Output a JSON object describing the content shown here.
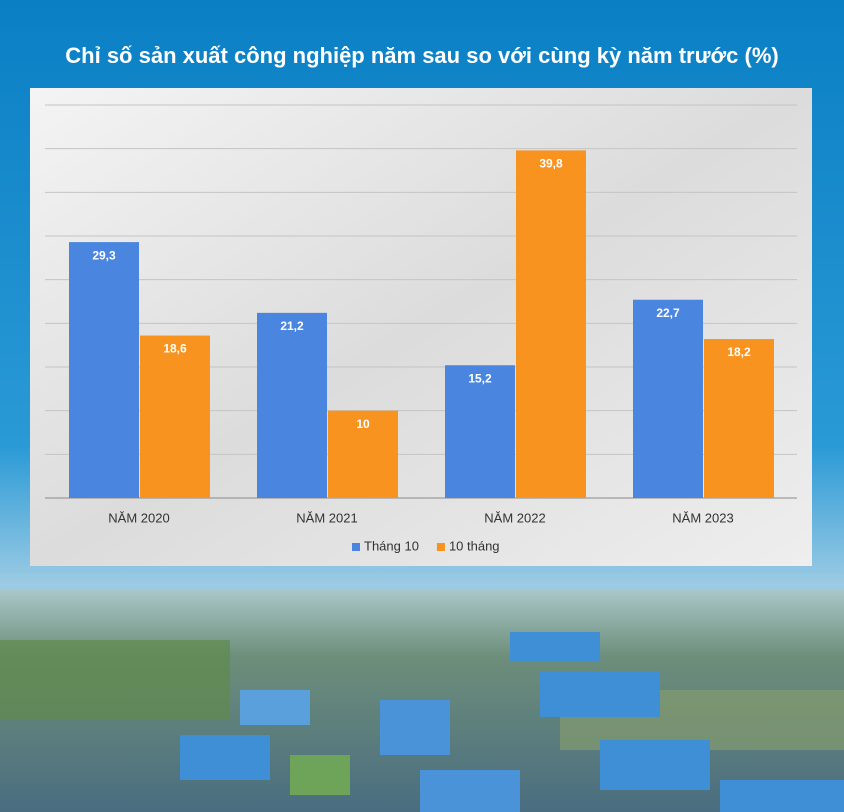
{
  "chart_data": {
    "type": "bar",
    "title": "Chỉ số sản xuất công nghiệp năm sau so với cùng kỳ năm trước (%)",
    "categories": [
      "NĂM 2020",
      "NĂM 2021",
      "NĂM 2022",
      "NĂM 2023"
    ],
    "series": [
      {
        "name": "Tháng 10",
        "color": "#4a86e0",
        "values": [
          29.3,
          21.2,
          15.2,
          22.7
        ],
        "value_labels": [
          "29,3",
          "21,2",
          "15,2",
          "22,7"
        ]
      },
      {
        "name": "10 tháng",
        "color": "#f7931e",
        "values": [
          18.6,
          10,
          39.8,
          18.2
        ],
        "value_labels": [
          "18,6",
          "10",
          "39,8",
          "18,2"
        ]
      }
    ],
    "ylim": [
      0,
      45
    ],
    "yticks": [
      0,
      5,
      10,
      15,
      20,
      25,
      30,
      35,
      40,
      45
    ],
    "tick_labels": false,
    "grid": true,
    "legend": "bottom"
  }
}
